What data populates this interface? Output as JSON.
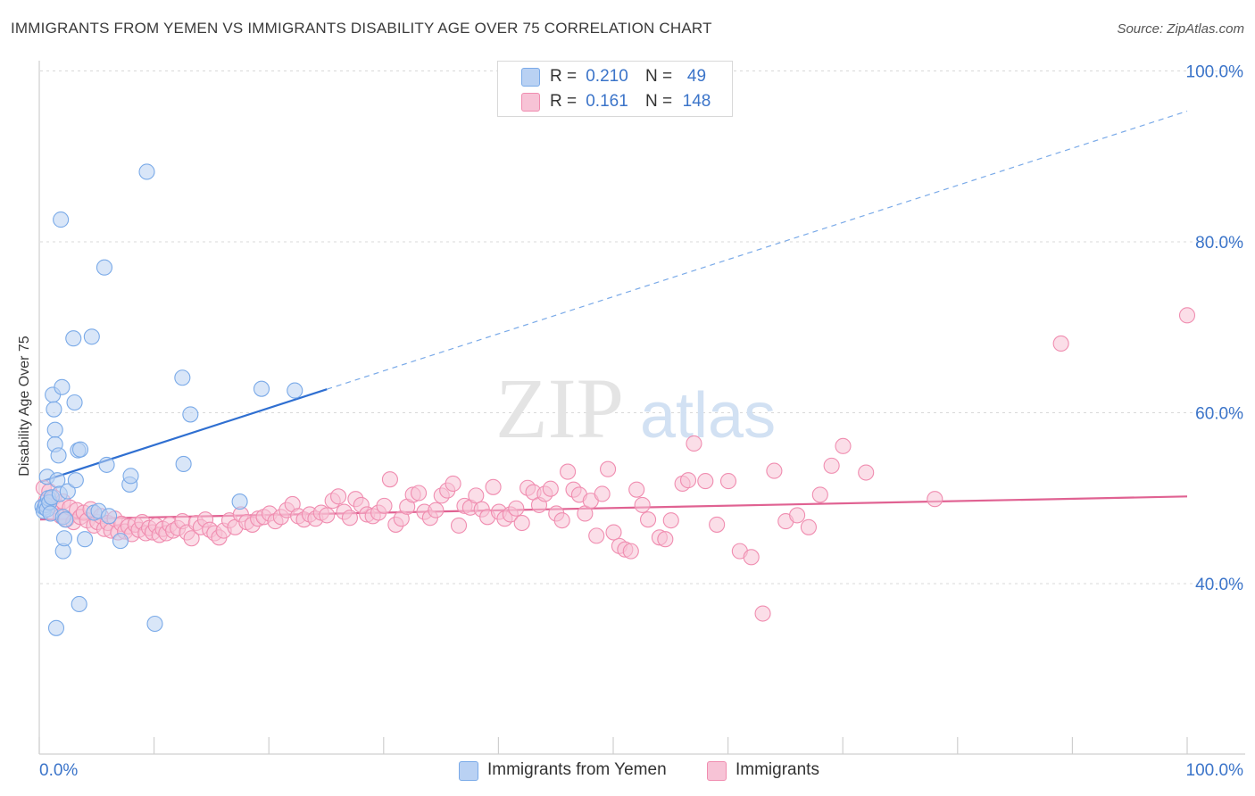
{
  "title": "IMMIGRANTS FROM YEMEN VS IMMIGRANTS DISABILITY AGE OVER 75 CORRELATION CHART",
  "source": "Source: ZipAtlas.com",
  "watermark": {
    "zip": "ZIP",
    "atlas": "atlas"
  },
  "legend": {
    "rows": [
      {
        "r_label": "R =",
        "r_value": "0.210",
        "n_label": "N =",
        "n_value": "49",
        "color": "#7aaae8",
        "fill": "#b9d1f3"
      },
      {
        "r_label": "R =",
        "r_value": "0.161",
        "n_label": "N =",
        "n_value": "148",
        "color": "#f08db0",
        "fill": "#f7c3d6"
      }
    ]
  },
  "bottom_legend": [
    {
      "label": "Immigrants from Yemen",
      "fill": "#b9d1f3",
      "stroke": "#7aaae8"
    },
    {
      "label": "Immigrants",
      "fill": "#f7c3d6",
      "stroke": "#f08db0"
    }
  ],
  "chart_data": {
    "type": "scatter",
    "title": "IMMIGRANTS FROM YEMEN VS IMMIGRANTS DISABILITY AGE OVER 75 CORRELATION CHART",
    "xlabel": "",
    "ylabel": "Disability Age Over 75",
    "xlim": [
      0,
      100
    ],
    "ylim": [
      20,
      100
    ],
    "x_tick_labels": [
      "0.0%",
      "100.0%"
    ],
    "y_tick_labels": [
      "40.0%",
      "60.0%",
      "80.0%",
      "100.0%"
    ],
    "y_ticks": [
      40,
      60,
      80,
      100
    ],
    "grid": true,
    "series": [
      {
        "name": "Immigrants from Yemen",
        "color": "#7aaae8",
        "fill": "#b9d1f3",
        "trend": {
          "x0": 0,
          "y0": 51.9,
          "x1": 100,
          "y1": 95.3,
          "solid_until": 25,
          "line_color": "#2f6fd1"
        },
        "points": [
          [
            0.2,
            49.0
          ],
          [
            0.3,
            48.5
          ],
          [
            0.4,
            48.9
          ],
          [
            0.5,
            49.2
          ],
          [
            0.6,
            48.7
          ],
          [
            0.6,
            52.5
          ],
          [
            0.7,
            50.0
          ],
          [
            0.8,
            49.5
          ],
          [
            0.9,
            48.2
          ],
          [
            1.0,
            50.1
          ],
          [
            1.1,
            62.1
          ],
          [
            1.2,
            60.4
          ],
          [
            1.3,
            58.0
          ],
          [
            1.3,
            56.3
          ],
          [
            1.4,
            34.8
          ],
          [
            1.5,
            52.1
          ],
          [
            1.6,
            55.0
          ],
          [
            1.7,
            50.5
          ],
          [
            1.8,
            82.6
          ],
          [
            1.9,
            63.0
          ],
          [
            2.0,
            43.8
          ],
          [
            2.0,
            47.8
          ],
          [
            2.1,
            45.3
          ],
          [
            2.2,
            47.5
          ],
          [
            2.4,
            50.8
          ],
          [
            2.9,
            68.7
          ],
          [
            3.0,
            61.2
          ],
          [
            3.1,
            52.1
          ],
          [
            3.3,
            55.6
          ],
          [
            3.4,
            37.6
          ],
          [
            3.5,
            55.7
          ],
          [
            3.9,
            45.2
          ],
          [
            4.5,
            68.9
          ],
          [
            4.7,
            48.3
          ],
          [
            5.1,
            48.5
          ],
          [
            5.6,
            77.0
          ],
          [
            5.8,
            53.9
          ],
          [
            6.0,
            47.9
          ],
          [
            7.0,
            45.0
          ],
          [
            7.8,
            51.6
          ],
          [
            7.9,
            52.6
          ],
          [
            9.3,
            88.2
          ],
          [
            10.0,
            35.3
          ],
          [
            12.4,
            64.1
          ],
          [
            12.5,
            54.0
          ],
          [
            13.1,
            59.8
          ],
          [
            17.4,
            49.6
          ],
          [
            19.3,
            62.8
          ],
          [
            22.2,
            62.6
          ]
        ]
      },
      {
        "name": "Immigrants",
        "color": "#f08db0",
        "fill": "#f7c3d6",
        "trend": {
          "x0": 0,
          "y0": 47.5,
          "x1": 100,
          "y1": 50.2,
          "line_color": "#e06292"
        },
        "points": [
          [
            0.3,
            51.2
          ],
          [
            0.5,
            49.6
          ],
          [
            0.8,
            50.8
          ],
          [
            1.0,
            48.4
          ],
          [
            1.2,
            50.1
          ],
          [
            1.5,
            49.0
          ],
          [
            1.8,
            47.9
          ],
          [
            2.0,
            49.6
          ],
          [
            2.3,
            47.5
          ],
          [
            2.6,
            48.9
          ],
          [
            2.9,
            47.2
          ],
          [
            3.2,
            48.6
          ],
          [
            3.5,
            47.8
          ],
          [
            3.8,
            48.3
          ],
          [
            4.1,
            47.4
          ],
          [
            4.4,
            48.7
          ],
          [
            4.7,
            46.8
          ],
          [
            5.0,
            47.2
          ],
          [
            5.3,
            47.9
          ],
          [
            5.6,
            46.4
          ],
          [
            5.9,
            47.1
          ],
          [
            6.2,
            46.2
          ],
          [
            6.5,
            47.6
          ],
          [
            6.8,
            46.0
          ],
          [
            7.1,
            47.0
          ],
          [
            7.4,
            46.1
          ],
          [
            7.7,
            46.7
          ],
          [
            8.0,
            45.8
          ],
          [
            8.3,
            46.9
          ],
          [
            8.6,
            46.3
          ],
          [
            8.9,
            47.2
          ],
          [
            9.2,
            45.9
          ],
          [
            9.5,
            46.5
          ],
          [
            9.8,
            46.0
          ],
          [
            10.1,
            46.8
          ],
          [
            10.4,
            45.7
          ],
          [
            10.7,
            46.4
          ],
          [
            11.0,
            45.9
          ],
          [
            11.3,
            46.9
          ],
          [
            11.6,
            46.2
          ],
          [
            12.0,
            46.5
          ],
          [
            12.4,
            47.3
          ],
          [
            12.8,
            46.0
          ],
          [
            13.2,
            45.3
          ],
          [
            13.6,
            47.1
          ],
          [
            14.0,
            46.6
          ],
          [
            14.4,
            47.5
          ],
          [
            14.8,
            46.3
          ],
          [
            15.2,
            45.9
          ],
          [
            15.6,
            45.4
          ],
          [
            16.0,
            46.2
          ],
          [
            16.5,
            47.4
          ],
          [
            17.0,
            46.6
          ],
          [
            17.5,
            48.1
          ],
          [
            18.0,
            47.2
          ],
          [
            18.5,
            46.9
          ],
          [
            19.0,
            47.6
          ],
          [
            19.5,
            47.8
          ],
          [
            20.0,
            48.2
          ],
          [
            20.5,
            47.3
          ],
          [
            21.0,
            47.8
          ],
          [
            21.5,
            48.6
          ],
          [
            22.0,
            49.3
          ],
          [
            22.5,
            47.9
          ],
          [
            23.0,
            47.5
          ],
          [
            23.5,
            48.1
          ],
          [
            24.0,
            47.6
          ],
          [
            24.5,
            48.3
          ],
          [
            25.0,
            48.0
          ],
          [
            25.5,
            49.7
          ],
          [
            26.0,
            50.2
          ],
          [
            26.5,
            48.4
          ],
          [
            27.0,
            47.7
          ],
          [
            27.5,
            49.9
          ],
          [
            28.0,
            49.2
          ],
          [
            28.5,
            48.1
          ],
          [
            29.0,
            47.9
          ],
          [
            29.5,
            48.3
          ],
          [
            30.0,
            49.1
          ],
          [
            30.5,
            52.2
          ],
          [
            31.0,
            46.9
          ],
          [
            31.5,
            47.6
          ],
          [
            32.0,
            49.0
          ],
          [
            32.5,
            50.4
          ],
          [
            33.0,
            50.6
          ],
          [
            33.5,
            48.4
          ],
          [
            34.0,
            47.7
          ],
          [
            34.5,
            48.6
          ],
          [
            35.0,
            50.3
          ],
          [
            35.5,
            50.9
          ],
          [
            36.0,
            51.7
          ],
          [
            36.5,
            46.8
          ],
          [
            37.0,
            49.1
          ],
          [
            37.5,
            48.9
          ],
          [
            38.0,
            50.3
          ],
          [
            38.5,
            48.7
          ],
          [
            39.0,
            47.8
          ],
          [
            39.5,
            51.3
          ],
          [
            40.0,
            48.4
          ],
          [
            40.5,
            47.6
          ],
          [
            41.0,
            48.1
          ],
          [
            41.5,
            48.8
          ],
          [
            42.0,
            47.1
          ],
          [
            42.5,
            51.2
          ],
          [
            43.0,
            50.7
          ],
          [
            43.5,
            49.2
          ],
          [
            44.0,
            50.5
          ],
          [
            44.5,
            51.1
          ],
          [
            45.0,
            48.2
          ],
          [
            45.5,
            47.4
          ],
          [
            46.0,
            53.1
          ],
          [
            46.5,
            51.0
          ],
          [
            47.0,
            50.4
          ],
          [
            47.5,
            48.2
          ],
          [
            48.0,
            49.7
          ],
          [
            48.5,
            45.6
          ],
          [
            49.0,
            50.5
          ],
          [
            49.5,
            53.4
          ],
          [
            50.0,
            46.0
          ],
          [
            50.5,
            44.4
          ],
          [
            51.0,
            44.0
          ],
          [
            51.5,
            43.8
          ],
          [
            52.0,
            51.0
          ],
          [
            52.5,
            49.2
          ],
          [
            53.0,
            47.5
          ],
          [
            54.0,
            45.4
          ],
          [
            54.5,
            45.2
          ],
          [
            55.0,
            47.4
          ],
          [
            56.0,
            51.7
          ],
          [
            56.5,
            52.1
          ],
          [
            57.0,
            56.4
          ],
          [
            58.0,
            52.0
          ],
          [
            59.0,
            46.9
          ],
          [
            60.0,
            52.0
          ],
          [
            61.0,
            43.8
          ],
          [
            62.0,
            43.1
          ],
          [
            63.0,
            36.5
          ],
          [
            64.0,
            53.2
          ],
          [
            65.0,
            47.3
          ],
          [
            66.0,
            48.0
          ],
          [
            67.0,
            46.6
          ],
          [
            68.0,
            50.4
          ],
          [
            69.0,
            53.8
          ],
          [
            70.0,
            56.1
          ],
          [
            72.0,
            53.0
          ],
          [
            78.0,
            49.9
          ],
          [
            89.0,
            68.1
          ],
          [
            100.0,
            71.4
          ]
        ]
      }
    ]
  }
}
